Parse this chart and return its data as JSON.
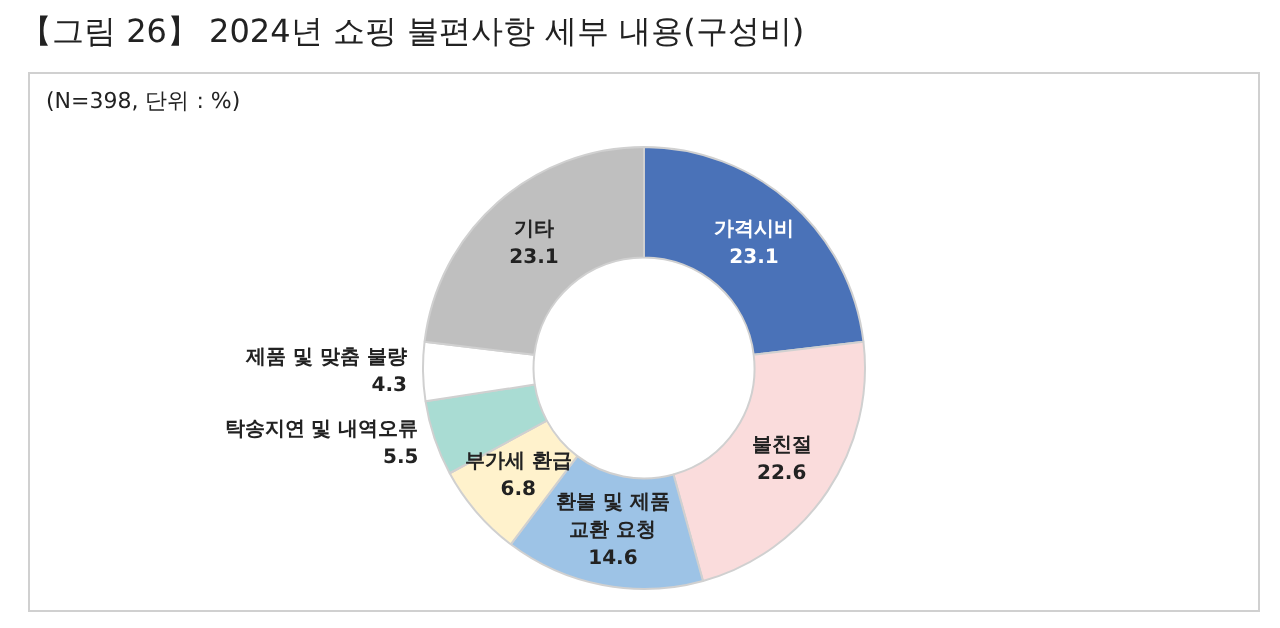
{
  "chart_data": {
    "type": "donut",
    "title": "【그림 26】 2024년 쇼핑 불편사항 세부 내용(구성비)",
    "subtitle": "(N=398,  단위 :  %)",
    "categories": [
      "가격시비",
      "불친절",
      "환불 및 제품\n교환 요청",
      "부가세 환급",
      "탁송지연 및 내역오류",
      "제품 및 맞춤 불량",
      "기타"
    ],
    "values": [
      23.1,
      22.6,
      14.6,
      6.8,
      5.5,
      4.3,
      23.1
    ],
    "colors": [
      "#4a72b8",
      "#fadcdc",
      "#9dc3e6",
      "#fff2cc",
      "#a9dcd3",
      "#ffffff",
      "#bfbfbf"
    ],
    "data_labels": true,
    "legend": false
  }
}
